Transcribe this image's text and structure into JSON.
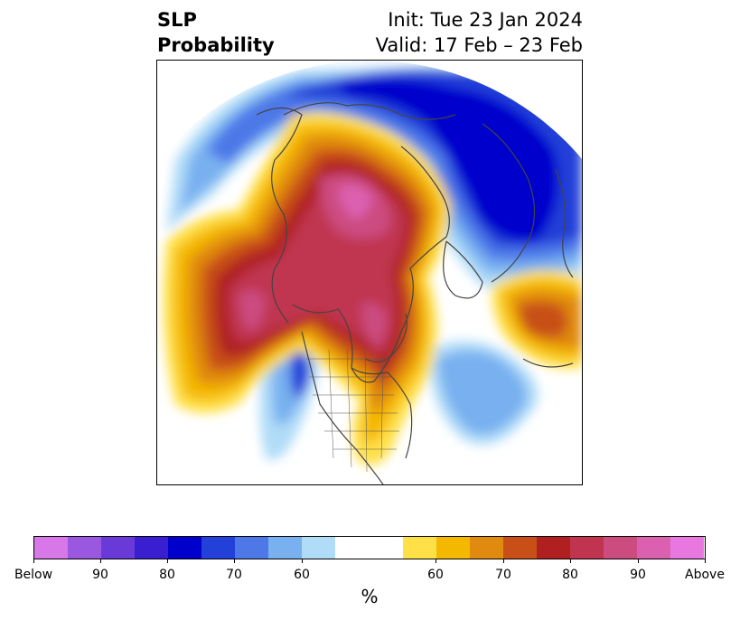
{
  "title": {
    "left_line1": "SLP",
    "left_line2": "Probability",
    "right_line1": "Init: Tue 23 Jan 2024",
    "right_line2": "Valid: 17 Feb – 23 Feb"
  },
  "colorbar": {
    "unit": "%",
    "colors": [
      "#d877e8",
      "#9a57e0",
      "#6a3ad8",
      "#3a1fd0",
      "#0000cc",
      "#2340d8",
      "#4e78e8",
      "#78b0f0",
      "#b0dcf8",
      "#ffffff",
      "#ffe046",
      "#f4b800",
      "#e08a10",
      "#c85018",
      "#b02020",
      "#c03450",
      "#cc4c80",
      "#dc60b0",
      "#e878e0"
    ],
    "ticks": [
      "Below",
      "90",
      "80",
      "70",
      "60",
      "60",
      "70",
      "80",
      "90",
      "Above"
    ]
  }
}
